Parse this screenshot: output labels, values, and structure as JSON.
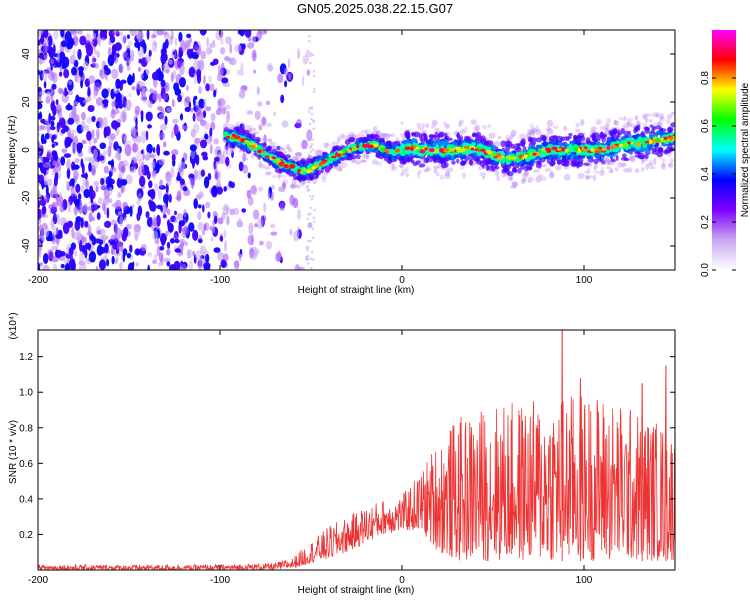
{
  "title": "GN05.2025.038.22.15.G07",
  "chart_data": [
    {
      "type": "heatmap",
      "xlabel": "Height of straight line (km)",
      "ylabel": "Frequency (Hz)",
      "xlim": [
        -200,
        150
      ],
      "ylim": [
        -50,
        50
      ],
      "x_ticks": [
        -200,
        -100,
        0,
        100
      ],
      "y_ticks": [
        -40,
        -20,
        0,
        20,
        40
      ],
      "colorbar": {
        "label": "Normalized spectral amplitude",
        "range": [
          0,
          1
        ],
        "ticks": [
          "0.0",
          "0.2",
          "0.4",
          "0.6",
          "0.8"
        ],
        "colors": [
          "#ffffff",
          "#c9a8f0",
          "#7f00ff",
          "#0000ff",
          "#00ffff",
          "#00ff00",
          "#ffff00",
          "#ff0000",
          "#ff00ff"
        ]
      },
      "ridge": {
        "x": [
          -97,
          -90,
          -85,
          -80,
          -75,
          -70,
          -65,
          -60,
          -55,
          -50,
          -45,
          -40,
          -35,
          -30,
          -25,
          -20,
          -15,
          -10,
          -5,
          0,
          5,
          10,
          20,
          30,
          40,
          50,
          60,
          70,
          80,
          90,
          100,
          110,
          120,
          130,
          140,
          150
        ],
        "y": [
          6,
          5,
          3,
          1,
          -2,
          -4,
          -6,
          -7,
          -9,
          -8,
          -6,
          -4,
          -2,
          0,
          1,
          2,
          2,
          0,
          -1,
          0,
          1,
          0,
          0,
          0,
          1,
          -2,
          -4,
          -2,
          0,
          0,
          0,
          0,
          2,
          3,
          4,
          5
        ]
      }
    },
    {
      "type": "line",
      "xlabel": "Height of straight line (km)",
      "ylabel": "SNR (10 * v/v)",
      "y_multiplier": "(x10⁴)",
      "xlim": [
        -200,
        150
      ],
      "ylim": [
        0,
        1.35
      ],
      "x_ticks": [
        -200,
        -100,
        0,
        100
      ],
      "y_ticks": [
        0.2,
        0.4,
        0.6,
        0.8,
        1.0,
        1.2
      ],
      "series": [
        {
          "color": "#ee3333",
          "envelope": {
            "x": [
              -200,
              -150,
              -100,
              -70,
              -60,
              -55,
              -50,
              -40,
              -30,
              -20,
              -10,
              0,
              10,
              20,
              30,
              40,
              50,
              60,
              70,
              80,
              90,
              100,
              110,
              120,
              130,
              140,
              150
            ],
            "min": [
              0.0,
              0.0,
              0.0,
              0.0,
              0.01,
              0.02,
              0.04,
              0.06,
              0.1,
              0.15,
              0.2,
              0.22,
              0.22,
              0.1,
              0.05,
              0.05,
              0.05,
              0.05,
              0.05,
              0.05,
              0.05,
              0.05,
              0.05,
              0.05,
              0.05,
              0.05,
              0.05
            ],
            "max": [
              0.03,
              0.03,
              0.03,
              0.04,
              0.07,
              0.12,
              0.16,
              0.25,
              0.3,
              0.36,
              0.4,
              0.42,
              0.55,
              0.75,
              0.85,
              0.9,
              0.95,
              0.95,
              0.95,
              1.0,
              1.0,
              1.0,
              1.0,
              0.95,
              0.9,
              0.85,
              0.8
            ]
          },
          "peaks": [
            {
              "x": 88,
              "y": 1.35
            },
            {
              "x": 145,
              "y": 1.15
            },
            {
              "x": 132,
              "y": 1.05
            },
            {
              "x": 98,
              "y": 1.08
            }
          ]
        }
      ]
    }
  ]
}
